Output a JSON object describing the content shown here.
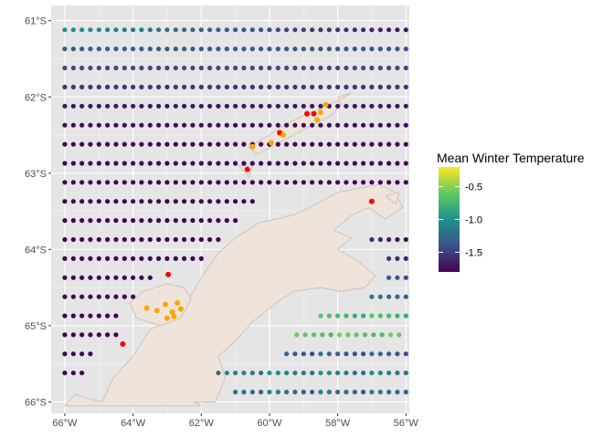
{
  "map": {
    "x_range": [
      -66.4,
      -55.9
    ],
    "y_range": [
      -66.15,
      -60.8
    ],
    "x_ticks": [
      {
        "value": -66,
        "label": "66°W"
      },
      {
        "value": -64,
        "label": "64°W"
      },
      {
        "value": -62,
        "label": "62°W"
      },
      {
        "value": -60,
        "label": "60°W"
      },
      {
        "value": -58,
        "label": "58°W"
      },
      {
        "value": -56,
        "label": "56°W"
      }
    ],
    "y_ticks": [
      {
        "value": -61,
        "label": "61°S"
      },
      {
        "value": -62,
        "label": "62°S"
      },
      {
        "value": -63,
        "label": "63°S"
      },
      {
        "value": -64,
        "label": "64°S"
      },
      {
        "value": -65,
        "label": "65°S"
      },
      {
        "value": -66,
        "label": "66°S"
      }
    ],
    "grid": true,
    "colors": {
      "panel": "#e5e5e5",
      "grid": "#ffffff",
      "land_fill": "#efe4dc",
      "land_stroke": "#cfc3bb",
      "site_red": "#ff0000",
      "site_orange": "#ffa500"
    },
    "legend": {
      "title": "Mean Winter Temperature",
      "range": [
        -1.8,
        -0.2
      ],
      "ticks": [
        {
          "value": -0.5,
          "label": "-0.5"
        },
        {
          "value": -1.0,
          "label": "-1.0"
        },
        {
          "value": -1.5,
          "label": "-1.5"
        }
      ],
      "placement": "right",
      "palette": [
        "#440154",
        "#3b528b",
        "#21918c",
        "#5ec962",
        "#fde725"
      ]
    },
    "grid_points": {
      "x_start": -66.0,
      "x_step": 0.25,
      "rows": [
        {
          "lat": -61.12,
          "lon_start": -66.0,
          "lon_end": -56.0,
          "temp_west": -1.0,
          "temp_east": -1.7
        },
        {
          "lat": -61.37,
          "lon_start": -66.0,
          "lon_end": -56.0,
          "temp_west": -1.3,
          "temp_east": -1.4
        },
        {
          "lat": -61.62,
          "lon_start": -66.0,
          "lon_end": -56.0,
          "temp_west": -1.45,
          "temp_east": -1.45
        },
        {
          "lat": -61.87,
          "lon_start": -66.0,
          "lon_end": -56.0,
          "temp_west": -1.55,
          "temp_east": -1.55
        },
        {
          "lat": -62.12,
          "lon_start": -66.0,
          "lon_end": -56.0,
          "temp_west": -1.7,
          "temp_east": -1.7
        },
        {
          "lat": -62.37,
          "lon_start": -66.0,
          "lon_end": -56.0,
          "temp_west": -1.75,
          "temp_east": -1.75
        },
        {
          "lat": -62.62,
          "lon_start": -66.0,
          "lon_end": -56.0,
          "temp_west": -1.78,
          "temp_east": -1.78
        },
        {
          "lat": -62.87,
          "lon_start": -66.0,
          "lon_end": -56.0,
          "temp_west": -1.78,
          "temp_east": -1.78
        },
        {
          "lat": -63.12,
          "lon_start": -66.0,
          "lon_end": -56.0,
          "temp_west": -1.8,
          "temp_east": -1.8
        },
        {
          "lat": -63.37,
          "lon_start": -66.0,
          "lon_end": -60.4,
          "temp_west": -1.8,
          "temp_east": -1.8
        },
        {
          "lat": -63.62,
          "lon_start": -66.0,
          "lon_end": -60.8,
          "temp_west": -1.8,
          "temp_east": -1.8
        },
        {
          "lat": -63.87,
          "lon_start": -66.0,
          "lon_end": -61.5,
          "temp_west": -1.8,
          "temp_east": -1.8
        },
        {
          "lat": -64.12,
          "lon_start": -66.0,
          "lon_end": -62.0,
          "temp_west": -1.8,
          "temp_east": -1.8
        },
        {
          "lat": -64.37,
          "lon_start": -66.0,
          "lon_end": -63.4,
          "temp_west": -1.8,
          "temp_east": -1.8
        },
        {
          "lat": -64.62,
          "lon_start": -66.0,
          "lon_end": -64.0,
          "temp_west": -1.8,
          "temp_east": -1.8
        },
        {
          "lat": -64.87,
          "lon_start": -66.0,
          "lon_end": -64.5,
          "temp_west": -1.8,
          "temp_east": -1.8
        },
        {
          "lat": -65.12,
          "lon_start": -66.0,
          "lon_end": -64.5,
          "temp_west": -1.8,
          "temp_east": -1.8
        },
        {
          "lat": -65.37,
          "lon_start": -66.0,
          "lon_end": -65.1,
          "temp_west": -1.8,
          "temp_east": -1.8
        },
        {
          "lat": -65.62,
          "lon_start": -66.0,
          "lon_end": -65.5,
          "temp_west": -1.8,
          "temp_east": -1.8
        }
      ],
      "east_rows": [
        {
          "lat": -63.87,
          "lon_start": -57.0,
          "lon_end": -56.0,
          "temp": -1.45
        },
        {
          "lat": -64.12,
          "lon_start": -56.5,
          "lon_end": -56.0,
          "temp": -1.3
        },
        {
          "lat": -64.37,
          "lon_start": -56.5,
          "lon_end": -56.0,
          "temp": -1.1
        },
        {
          "lat": -64.62,
          "lon_start": -57.0,
          "lon_end": -56.0,
          "temp": -1.0
        },
        {
          "lat": -64.87,
          "lon_start": -58.5,
          "lon_end": -56.0,
          "temp": -0.5
        },
        {
          "lat": -65.12,
          "lon_start": -59.2,
          "lon_end": -56.0,
          "temp": -0.4
        },
        {
          "lat": -65.37,
          "lon_start": -59.5,
          "lon_end": -56.0,
          "temp": -1.1
        },
        {
          "lat": -65.62,
          "lon_start": -61.5,
          "lon_end": -56.0,
          "temp": -0.9
        },
        {
          "lat": -65.87,
          "lon_start": -61.0,
          "lon_end": -56.0,
          "temp": -1.0
        }
      ]
    },
    "sites": [
      {
        "lon": -58.9,
        "lat": -62.22,
        "color": "red"
      },
      {
        "lon": -58.7,
        "lat": -62.22,
        "color": "red"
      },
      {
        "lon": -59.7,
        "lat": -62.47,
        "color": "red"
      },
      {
        "lon": -60.65,
        "lat": -62.95,
        "color": "red"
      },
      {
        "lon": -57.0,
        "lat": -63.37,
        "color": "red"
      },
      {
        "lon": -62.97,
        "lat": -64.33,
        "color": "red"
      },
      {
        "lon": -64.3,
        "lat": -65.24,
        "color": "red"
      },
      {
        "lon": -58.35,
        "lat": -62.1,
        "color": "orange"
      },
      {
        "lon": -58.5,
        "lat": -62.2,
        "color": "orange"
      },
      {
        "lon": -58.6,
        "lat": -62.3,
        "color": "orange"
      },
      {
        "lon": -59.6,
        "lat": -62.5,
        "color": "orange"
      },
      {
        "lon": -59.95,
        "lat": -62.6,
        "color": "orange"
      },
      {
        "lon": -60.5,
        "lat": -62.65,
        "color": "orange"
      },
      {
        "lon": -63.05,
        "lat": -64.72,
        "color": "orange"
      },
      {
        "lon": -62.7,
        "lat": -64.7,
        "color": "orange"
      },
      {
        "lon": -62.85,
        "lat": -64.82,
        "color": "orange"
      },
      {
        "lon": -63.3,
        "lat": -64.8,
        "color": "orange"
      },
      {
        "lon": -62.6,
        "lat": -64.78,
        "color": "orange"
      },
      {
        "lon": -63.0,
        "lat": -64.9,
        "color": "orange"
      },
      {
        "lon": -63.6,
        "lat": -64.77,
        "color": "orange"
      },
      {
        "lon": -62.8,
        "lat": -64.88,
        "color": "orange"
      }
    ],
    "land": [
      [
        [
          -66.0,
          -66.05
        ],
        [
          -65.7,
          -65.9
        ],
        [
          -65.35,
          -65.95
        ],
        [
          -64.9,
          -66.0
        ],
        [
          -64.6,
          -65.7
        ],
        [
          -64.0,
          -65.4
        ],
        [
          -63.5,
          -65.05
        ],
        [
          -63.0,
          -64.95
        ],
        [
          -62.3,
          -64.6
        ],
        [
          -61.9,
          -64.3
        ],
        [
          -61.5,
          -64.05
        ],
        [
          -61.0,
          -63.85
        ],
        [
          -60.3,
          -63.65
        ],
        [
          -59.3,
          -63.55
        ],
        [
          -58.6,
          -63.4
        ],
        [
          -58.0,
          -63.25
        ],
        [
          -57.4,
          -63.2
        ],
        [
          -56.8,
          -63.15
        ],
        [
          -56.3,
          -63.25
        ],
        [
          -56.1,
          -63.45
        ],
        [
          -56.6,
          -63.6
        ],
        [
          -57.1,
          -63.45
        ],
        [
          -57.6,
          -63.55
        ],
        [
          -58.1,
          -63.75
        ],
        [
          -57.6,
          -63.85
        ],
        [
          -58.0,
          -64.0
        ],
        [
          -57.4,
          -64.15
        ],
        [
          -56.9,
          -64.35
        ],
        [
          -57.2,
          -64.5
        ],
        [
          -57.9,
          -64.55
        ],
        [
          -58.5,
          -64.5
        ],
        [
          -59.3,
          -64.55
        ],
        [
          -59.8,
          -64.7
        ],
        [
          -60.5,
          -64.95
        ],
        [
          -61.0,
          -65.2
        ],
        [
          -61.5,
          -65.4
        ],
        [
          -61.3,
          -65.7
        ],
        [
          -61.6,
          -66.0
        ],
        [
          -62.2,
          -66.0
        ],
        [
          -62.0,
          -66.05
        ],
        [
          -64.3,
          -66.05
        ],
        [
          -66.0,
          -66.05
        ]
      ],
      [
        [
          -63.7,
          -64.55
        ],
        [
          -63.0,
          -64.45
        ],
        [
          -62.5,
          -64.5
        ],
        [
          -62.3,
          -64.65
        ],
        [
          -62.6,
          -64.9
        ],
        [
          -63.2,
          -65.0
        ],
        [
          -63.9,
          -64.9
        ],
        [
          -64.1,
          -64.7
        ],
        [
          -63.7,
          -64.55
        ]
      ],
      [
        [
          -58.0,
          -62.0
        ],
        [
          -57.6,
          -61.95
        ],
        [
          -58.0,
          -62.05
        ],
        [
          -58.5,
          -62.15
        ],
        [
          -59.0,
          -62.25
        ],
        [
          -59.5,
          -62.35
        ],
        [
          -60.0,
          -62.5
        ],
        [
          -60.6,
          -62.65
        ],
        [
          -60.4,
          -62.75
        ],
        [
          -59.9,
          -62.65
        ],
        [
          -59.3,
          -62.5
        ],
        [
          -58.7,
          -62.35
        ],
        [
          -58.2,
          -62.25
        ],
        [
          -57.9,
          -62.1
        ],
        [
          -58.0,
          -62.0
        ]
      ],
      [
        [
          -60.9,
          -62.9
        ],
        [
          -60.5,
          -62.9
        ],
        [
          -60.6,
          -63.05
        ],
        [
          -60.9,
          -62.9
        ]
      ],
      [
        [
          -56.6,
          -63.3
        ],
        [
          -56.2,
          -63.25
        ],
        [
          -56.3,
          -63.4
        ],
        [
          -56.6,
          -63.3
        ]
      ]
    ]
  }
}
